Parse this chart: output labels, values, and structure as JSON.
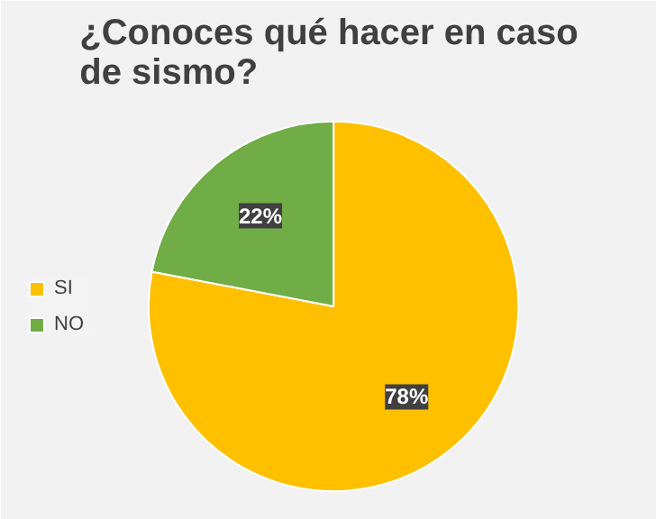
{
  "chart_data": {
    "type": "pie",
    "title": "¿Conoces qué hacer en caso de sismo?",
    "categories": [
      "SI",
      "NO"
    ],
    "values": [
      78,
      22
    ],
    "colors": [
      "#ffc000",
      "#70ad47"
    ],
    "value_labels": [
      "78%",
      "22%"
    ],
    "legend": "left"
  }
}
